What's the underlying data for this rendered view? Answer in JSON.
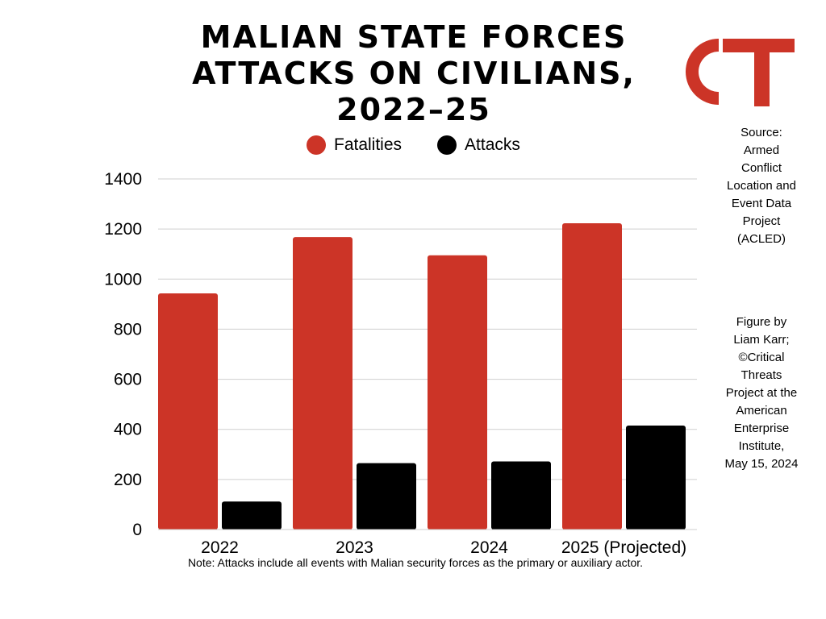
{
  "title_lines": [
    "MALIAN STATE FORCES",
    "ATTACKS ON CIVILIANS,",
    "2022–25"
  ],
  "logo": {
    "text": "CT",
    "color": "#cc3427"
  },
  "source_lines": [
    "Source:",
    "Armed",
    "Conflict",
    "Location and",
    "Event Data",
    "Project",
    "(ACLED)"
  ],
  "credit_lines": [
    "Figure by",
    "Liam Karr;",
    "©Critical",
    "Threats",
    "Project at the",
    "American",
    "Enterprise",
    "Institute,",
    "May 15, 2024"
  ],
  "note": "Note: Attacks include all events with Malian security forces as the primary or auxiliary actor.",
  "chart_data": {
    "type": "bar",
    "title": "MALIAN STATE FORCES ATTACKS ON CIVILIANS, 2022–25",
    "categories": [
      "2022",
      "2023",
      "2024",
      "2025 (Projected)"
    ],
    "series": [
      {
        "name": "Fatalities",
        "color": "#cc3427",
        "values": [
          943,
          1168,
          1095,
          1223
        ]
      },
      {
        "name": "Attacks",
        "color": "#000000",
        "values": [
          112,
          265,
          272,
          415
        ]
      }
    ],
    "ylim": [
      0,
      1400
    ],
    "yticks": [
      0,
      200,
      400,
      600,
      800,
      1000,
      1200,
      1400
    ],
    "xlabel": "",
    "ylabel": "",
    "grid": true,
    "legend": "top"
  }
}
